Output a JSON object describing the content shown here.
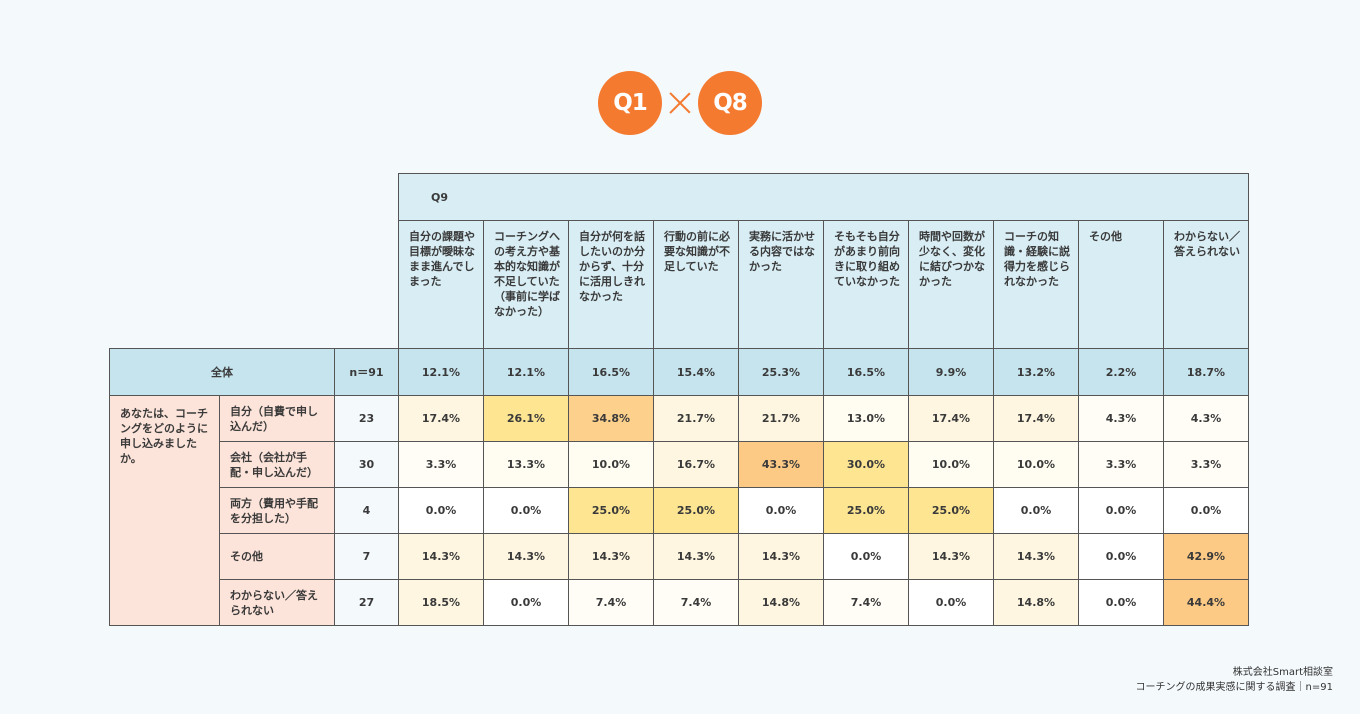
{
  "header": {
    "left_label": "Q1",
    "right_label": "Q8"
  },
  "chart_data": {
    "type": "table",
    "header_label": "Q9",
    "columns": [
      "自分の課題や目標が曖昧なまま進んでしまった",
      "コーチングへの考え方や基本的な知識が不足していた（事前に学ばなかった）",
      "自分が何を話したいのか分からず、十分に活用しきれなかった",
      "行動の前に必要な知識が不足していた",
      "実務に活かせる内容ではなかった",
      "そもそも自分があまり前向きに取り組めていなかった",
      "時間や回数が少なく、変化に結びつかなかった",
      "コーチの知識・経験に説得力を感じられなかった",
      "その他",
      "わからない／答えられない"
    ],
    "total": {
      "label": "全体",
      "n": "n＝91",
      "values": [
        "12.1%",
        "12.1%",
        "16.5%",
        "15.4%",
        "25.3%",
        "16.5%",
        "9.9%",
        "13.2%",
        "2.2%",
        "18.7%"
      ]
    },
    "row_group_label": "あなたは、コーチングをどのように申し込みましたか。",
    "rows": [
      {
        "label": "自分（自費で申し込んだ）",
        "n": "23",
        "values": [
          "17.4%",
          "26.1%",
          "34.8%",
          "21.7%",
          "21.7%",
          "13.0%",
          "17.4%",
          "17.4%",
          "4.3%",
          "4.3%"
        ],
        "colors": [
          "#fef6e0",
          "#fde592",
          "#fdd08c",
          "#fef6e0",
          "#fef6e0",
          "#fffcf1",
          "#fef6e0",
          "#fef6e0",
          "#fffdf6",
          "#fffdf6"
        ]
      },
      {
        "label": "会社（会社が手配・申し込んだ）",
        "n": "30",
        "values": [
          "3.3%",
          "13.3%",
          "10.0%",
          "16.7%",
          "43.3%",
          "30.0%",
          "10.0%",
          "10.0%",
          "3.3%",
          "3.3%"
        ],
        "colors": [
          "#fffdf6",
          "#fffcf1",
          "#fffcf1",
          "#fef6e0",
          "#fdca86",
          "#fde592",
          "#fffcf1",
          "#fffcf1",
          "#fffdf6",
          "#fffdf6"
        ]
      },
      {
        "label": "両方（費用や手配を分担した）",
        "n": "4",
        "values": [
          "0.0%",
          "0.0%",
          "25.0%",
          "25.0%",
          "0.0%",
          "25.0%",
          "25.0%",
          "0.0%",
          "0.0%",
          "0.0%"
        ],
        "colors": [
          "#ffffff",
          "#ffffff",
          "#fde592",
          "#fde592",
          "#ffffff",
          "#fde592",
          "#fde592",
          "#ffffff",
          "#ffffff",
          "#ffffff"
        ]
      },
      {
        "label": "その他",
        "n": "7",
        "values": [
          "14.3%",
          "14.3%",
          "14.3%",
          "14.3%",
          "14.3%",
          "0.0%",
          "14.3%",
          "14.3%",
          "0.0%",
          "42.9%"
        ],
        "colors": [
          "#fef6e0",
          "#fef6e0",
          "#fef6e0",
          "#fef6e0",
          "#fef6e0",
          "#ffffff",
          "#fef6e0",
          "#fef6e0",
          "#ffffff",
          "#fdca86"
        ]
      },
      {
        "label": "わからない／答えられない",
        "n": "27",
        "values": [
          "18.5%",
          "0.0%",
          "7.4%",
          "7.4%",
          "14.8%",
          "7.4%",
          "0.0%",
          "14.8%",
          "0.0%",
          "44.4%"
        ],
        "colors": [
          "#fef6e0",
          "#ffffff",
          "#fffdf6",
          "#fffdf6",
          "#fef6e0",
          "#fffdf6",
          "#ffffff",
          "#fef6e0",
          "#ffffff",
          "#fdca86"
        ]
      }
    ]
  },
  "footer": {
    "line1": "株式会社Smart相談室",
    "line2": "コーチングの成果実感に関する調査｜n=91"
  }
}
